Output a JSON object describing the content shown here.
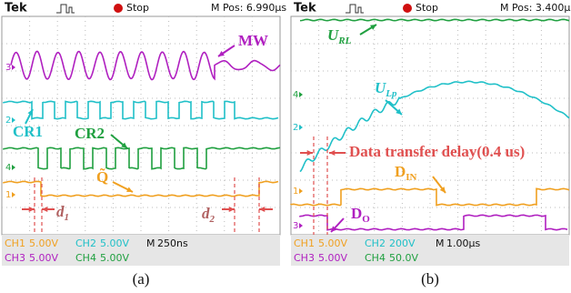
{
  "panels": [
    {
      "header": {
        "brand": "Tek",
        "state": "Stop",
        "position": "M Pos: 6.990µs"
      },
      "channel_markers": [
        "3",
        "2",
        "4",
        "1"
      ],
      "annotations": {
        "mw": "MW",
        "cr1": "CR1",
        "cr2": "CR2",
        "q": "Q̃",
        "d1": {
          "main": "d",
          "sub": "1"
        },
        "d2": {
          "main": "d",
          "sub": "2"
        }
      },
      "footer": [
        [
          {
            "channel": "CH1",
            "scale": "5.00V"
          },
          {
            "channel": "CH2",
            "scale": "5.00V"
          },
          {
            "channel": "M",
            "scale": "250ns"
          }
        ],
        [
          {
            "channel": "CH3",
            "scale": "5.00V"
          },
          {
            "channel": "CH4",
            "scale": "5.00V"
          }
        ]
      ],
      "caption": "(a)"
    },
    {
      "header": {
        "brand": "Tek",
        "state": "Stop",
        "position": "M Pos: 3.400µs"
      },
      "channel_markers": [
        "4",
        "2",
        "1",
        "3"
      ],
      "annotations": {
        "url": {
          "main": "U",
          "sub": "RL"
        },
        "ulp": {
          "main": "U",
          "sub": "Lp"
        },
        "delay": "Data transfer delay(0.4 us)",
        "din": {
          "main": "D",
          "sub": "IN"
        },
        "do": {
          "main": "D",
          "sub": "O"
        }
      },
      "footer": [
        [
          {
            "channel": "CH1",
            "scale": "5.00V"
          },
          {
            "channel": "CH2",
            "scale": "200V"
          },
          {
            "channel": "M",
            "scale": "1.00µs"
          }
        ],
        [
          {
            "channel": "CH3",
            "scale": "5.00V"
          },
          {
            "channel": "CH4",
            "scale": "50.0V"
          }
        ]
      ],
      "caption": "(b)"
    }
  ]
}
